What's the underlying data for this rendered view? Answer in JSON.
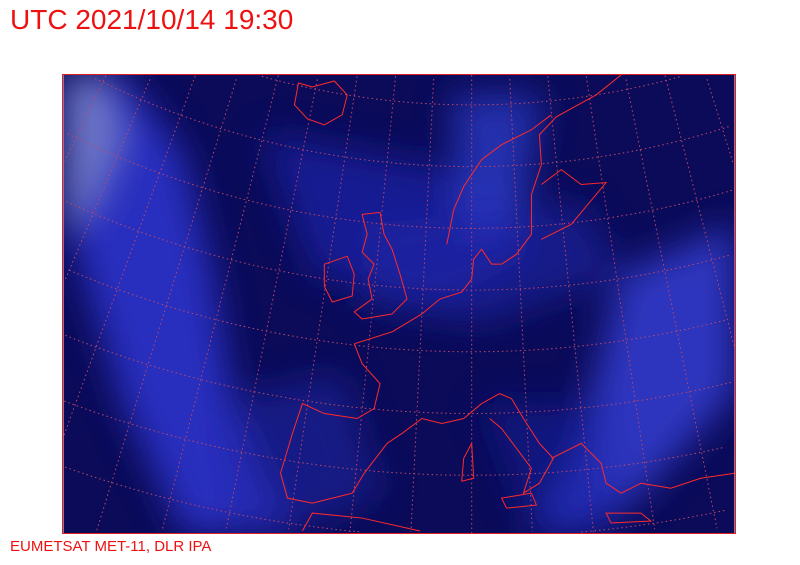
{
  "header": {
    "title": "UTC 2021/10/14 19:30"
  },
  "footer": {
    "credit": "EUMETSAT MET-11, DLR IPA"
  },
  "map": {
    "product": "satellite imagery, Europe",
    "colors": {
      "background": "#0a0a55",
      "cloud": "#2a30d8",
      "coastline": "#ff2020",
      "graticule": "#c04060",
      "text": "#ee1111"
    }
  }
}
